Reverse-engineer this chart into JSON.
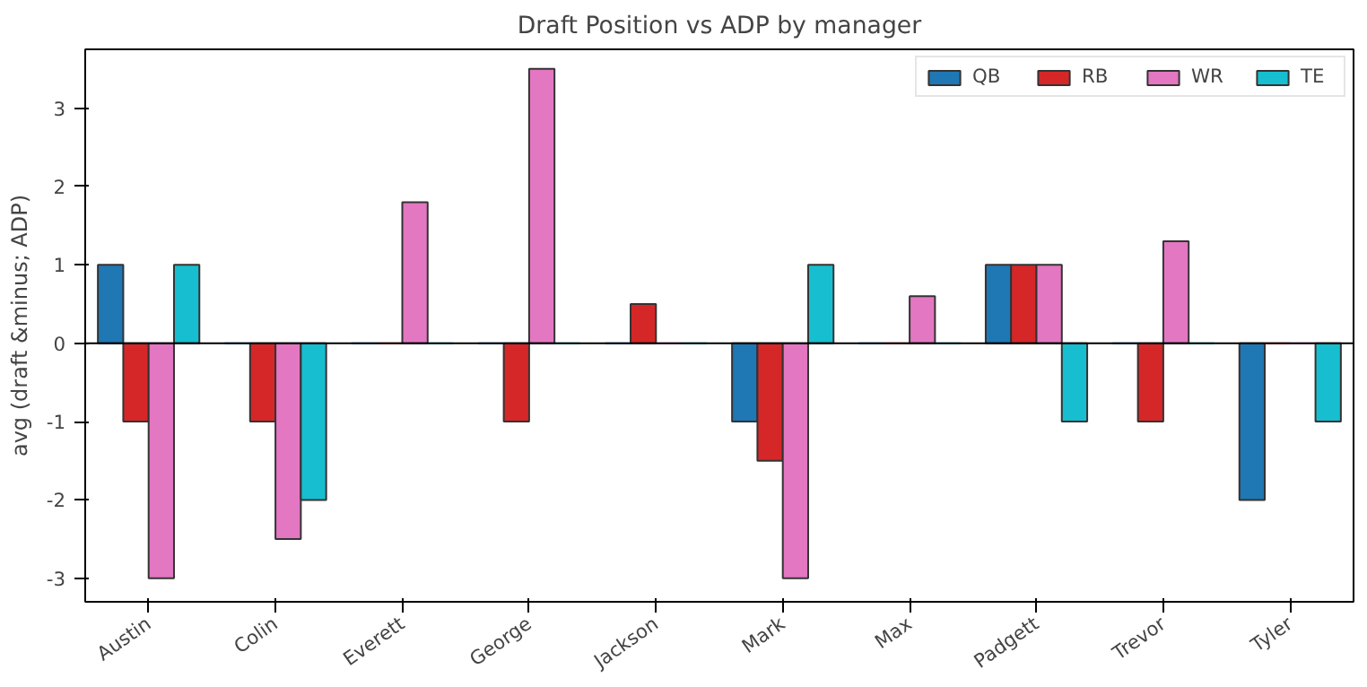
{
  "chart_data": {
    "type": "bar",
    "title": "Draft Position vs ADP by manager",
    "ylabel": "avg (draft &minus; ADP)",
    "categories": [
      "Austin",
      "Colin",
      "Everett",
      "George",
      "Jackson",
      "Mark",
      "Max",
      "Padgett",
      "Trevor",
      "Tyler"
    ],
    "series": [
      {
        "name": "QB",
        "color": "#1f77b4",
        "values": [
          1,
          0,
          0,
          0,
          0,
          -1,
          0,
          1,
          0,
          -2
        ]
      },
      {
        "name": "RB",
        "color": "#d62728",
        "values": [
          -1,
          -1,
          0,
          -1,
          0.5,
          -1.5,
          0,
          1,
          -1,
          0
        ]
      },
      {
        "name": "WR",
        "color": "#e377c2",
        "values": [
          -3,
          -2.5,
          1.8,
          3.5,
          0,
          -3,
          0.6,
          1,
          1.3,
          0
        ]
      },
      {
        "name": "TE",
        "color": "#17becf",
        "values": [
          1,
          -2,
          0,
          0,
          0,
          1,
          0,
          -1,
          0,
          -1
        ]
      }
    ],
    "ylim": [
      -3.3,
      3.75
    ],
    "yticks": [
      -3,
      -2,
      -1,
      0,
      1,
      2,
      3
    ],
    "grid": false,
    "legend": "top right",
    "ref_lines": [
      {
        "axis": "y",
        "value": 0,
        "color": "#000000"
      }
    ]
  }
}
